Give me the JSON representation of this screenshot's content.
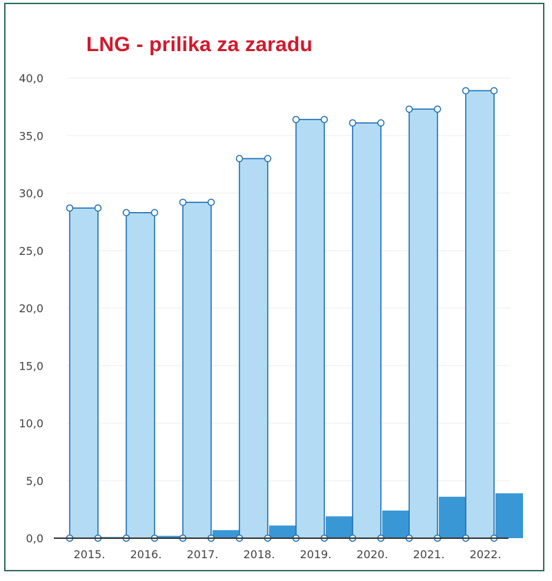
{
  "title": "LNG - prilika za zaradu",
  "colors": {
    "frame": "#2f6b5e",
    "title": "#d1192c",
    "bar_light_fill": "#b3dcf4",
    "bar_light_stroke": "#1f6fb5",
    "bar_dark_fill": "#3a97d6",
    "gridline": "#eeeeee",
    "axis": "#333333"
  },
  "chart_data": {
    "type": "bar",
    "categories": [
      "2015.",
      "2016.",
      "2017.",
      "2018.",
      "2019.",
      "2020.",
      "2021.",
      "2022."
    ],
    "series": [
      {
        "values": [
          28.7,
          28.3,
          29.2,
          33.0,
          36.4,
          36.1,
          37.3,
          38.9
        ]
      },
      {
        "values": [
          0.1,
          0.2,
          0.7,
          1.1,
          1.9,
          2.4,
          3.6,
          3.9
        ]
      }
    ],
    "yticks": [
      "0,0",
      "5,0",
      "10,0",
      "15,0",
      "20,0",
      "25,0",
      "30,0",
      "35,0",
      "40,0"
    ],
    "ylim": [
      0,
      40
    ],
    "grid": true,
    "legend": "none"
  }
}
